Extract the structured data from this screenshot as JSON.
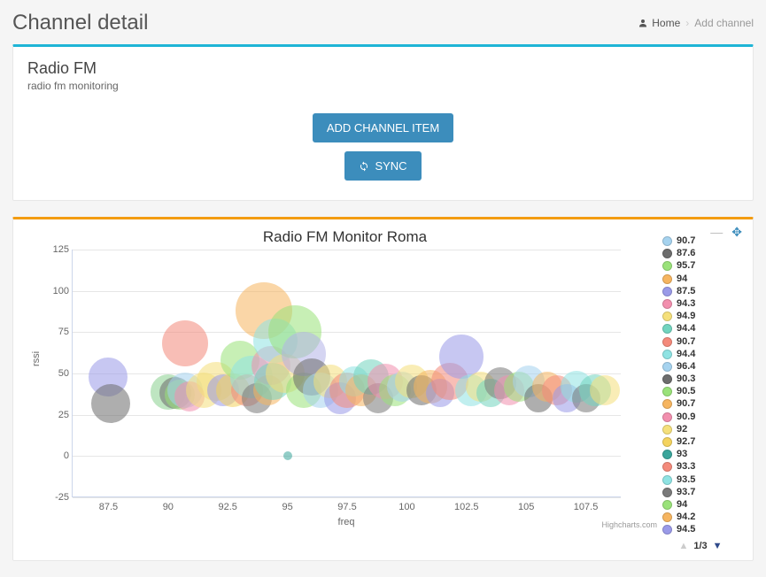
{
  "header": {
    "title": "Channel detail",
    "breadcrumb": {
      "home": "Home",
      "current": "Add channel"
    }
  },
  "channel": {
    "title": "Radio FM",
    "subtitle": "radio fm monitoring",
    "add_btn": "ADD CHANNEL ITEM",
    "sync_btn": "SYNC"
  },
  "chart": {
    "title": "Radio FM Monitor Roma",
    "xlabel": "freq",
    "ylabel": "rssi",
    "credit": "Highcharts.com",
    "pager": "1/3",
    "xlim": [
      86,
      109
    ],
    "ylim": [
      -25,
      125
    ],
    "yticks": [
      -25,
      0,
      25,
      50,
      75,
      100,
      125
    ],
    "xticks": [
      87.5,
      90,
      92.5,
      95,
      97.5,
      100,
      102.5,
      105,
      107.5
    ],
    "background_color": "#ffffff",
    "grid_color": "#e6e6e6",
    "axis_color": "#ccd6eb",
    "tick_font_size": 11,
    "title_font_size": 17,
    "bubble_opacity": 0.55,
    "legend": [
      {
        "label": "90.7",
        "color": "#a6d3ef"
      },
      {
        "label": "87.6",
        "color": "#6d6d6d"
      },
      {
        "label": "95.7",
        "color": "#9ae27a"
      },
      {
        "label": "94",
        "color": "#f6b560"
      },
      {
        "label": "87.5",
        "color": "#9a9ae8"
      },
      {
        "label": "94.3",
        "color": "#f28fae"
      },
      {
        "label": "94.9",
        "color": "#f5e07b"
      },
      {
        "label": "94.4",
        "color": "#72d4bf"
      },
      {
        "label": "90.7",
        "color": "#f48a7b"
      },
      {
        "label": "94.4",
        "color": "#8fe3e3"
      },
      {
        "label": "96.4",
        "color": "#a6d3ef"
      },
      {
        "label": "90.3",
        "color": "#6d6d6d"
      },
      {
        "label": "90.5",
        "color": "#9ae27a"
      },
      {
        "label": "90.7",
        "color": "#f6b560"
      },
      {
        "label": "90.9",
        "color": "#f28fae"
      },
      {
        "label": "92",
        "color": "#f5e07b"
      },
      {
        "label": "92.7",
        "color": "#f4d35e"
      },
      {
        "label": "93",
        "color": "#3aa59b"
      },
      {
        "label": "93.3",
        "color": "#f48a7b"
      },
      {
        "label": "93.5",
        "color": "#8fe3e3"
      },
      {
        "label": "93.7",
        "color": "#7a7a7a"
      },
      {
        "label": "94",
        "color": "#9ae27a"
      },
      {
        "label": "94.2",
        "color": "#f6b560"
      },
      {
        "label": "94.5",
        "color": "#9a9ae8"
      }
    ],
    "bubbles": [
      {
        "x": 87.5,
        "y": 48,
        "r": 22,
        "c": "#9a9ae8"
      },
      {
        "x": 87.6,
        "y": 32,
        "r": 22,
        "c": "#6d6d6d"
      },
      {
        "x": 90.0,
        "y": 39,
        "r": 20,
        "c": "#8ad18f"
      },
      {
        "x": 90.3,
        "y": 38,
        "r": 18,
        "c": "#6d6d6d"
      },
      {
        "x": 90.5,
        "y": 37,
        "r": 17,
        "c": "#9ae27a"
      },
      {
        "x": 90.7,
        "y": 68,
        "r": 26,
        "c": "#f48a7b"
      },
      {
        "x": 90.7,
        "y": 40,
        "r": 20,
        "c": "#a6d3ef"
      },
      {
        "x": 90.9,
        "y": 36,
        "r": 17,
        "c": "#f28fae"
      },
      {
        "x": 91.5,
        "y": 40,
        "r": 20,
        "c": "#f5e07b"
      },
      {
        "x": 92.0,
        "y": 45,
        "r": 22,
        "c": "#f5e07b"
      },
      {
        "x": 92.3,
        "y": 40,
        "r": 18,
        "c": "#9a9ae8"
      },
      {
        "x": 92.7,
        "y": 40,
        "r": 19,
        "c": "#f4d35e"
      },
      {
        "x": 93.0,
        "y": 58,
        "r": 22,
        "c": "#9ae27a"
      },
      {
        "x": 93.3,
        "y": 40,
        "r": 18,
        "c": "#f48a7b"
      },
      {
        "x": 93.5,
        "y": 48,
        "r": 24,
        "c": "#8fe3e3"
      },
      {
        "x": 93.7,
        "y": 35,
        "r": 17,
        "c": "#7a7a7a"
      },
      {
        "x": 94.0,
        "y": 88,
        "r": 32,
        "c": "#f6b560"
      },
      {
        "x": 94.2,
        "y": 40,
        "r": 17,
        "c": "#f6b560"
      },
      {
        "x": 94.3,
        "y": 55,
        "r": 22,
        "c": "#f28fae"
      },
      {
        "x": 94.4,
        "y": 45,
        "r": 21,
        "c": "#72d4bf"
      },
      {
        "x": 94.5,
        "y": 70,
        "r": 25,
        "c": "#8fe3e3"
      },
      {
        "x": 94.9,
        "y": 50,
        "r": 22,
        "c": "#f5e07b"
      },
      {
        "x": 95.0,
        "y": 0,
        "r": 5,
        "c": "#3aa59b"
      },
      {
        "x": 95.3,
        "y": 75,
        "r": 30,
        "c": "#9ae27a"
      },
      {
        "x": 95.7,
        "y": 40,
        "r": 20,
        "c": "#9ae27a"
      },
      {
        "x": 95.7,
        "y": 62,
        "r": 25,
        "c": "#b3b3e8"
      },
      {
        "x": 96.0,
        "y": 48,
        "r": 21,
        "c": "#6d6d6d"
      },
      {
        "x": 96.4,
        "y": 40,
        "r": 20,
        "c": "#a6d3ef"
      },
      {
        "x": 96.8,
        "y": 45,
        "r": 19,
        "c": "#f5e07b"
      },
      {
        "x": 97.2,
        "y": 35,
        "r": 18,
        "c": "#9a9ae8"
      },
      {
        "x": 97.5,
        "y": 40,
        "r": 20,
        "c": "#f48a7b"
      },
      {
        "x": 97.8,
        "y": 45,
        "r": 17,
        "c": "#8fe3e3"
      },
      {
        "x": 98.1,
        "y": 40,
        "r": 18,
        "c": "#f6b560"
      },
      {
        "x": 98.5,
        "y": 48,
        "r": 20,
        "c": "#72d4bf"
      },
      {
        "x": 98.8,
        "y": 35,
        "r": 17,
        "c": "#7a7a7a"
      },
      {
        "x": 99.1,
        "y": 45,
        "r": 20,
        "c": "#f28fae"
      },
      {
        "x": 99.5,
        "y": 40,
        "r": 18,
        "c": "#9ae27a"
      },
      {
        "x": 99.8,
        "y": 42,
        "r": 17,
        "c": "#a6d3ef"
      },
      {
        "x": 100.2,
        "y": 45,
        "r": 19,
        "c": "#f5e07b"
      },
      {
        "x": 100.6,
        "y": 40,
        "r": 17,
        "c": "#6d6d6d"
      },
      {
        "x": 101.0,
        "y": 42,
        "r": 19,
        "c": "#f6b560"
      },
      {
        "x": 101.4,
        "y": 38,
        "r": 16,
        "c": "#9a9ae8"
      },
      {
        "x": 101.8,
        "y": 45,
        "r": 21,
        "c": "#f48a7b"
      },
      {
        "x": 102.3,
        "y": 60,
        "r": 25,
        "c": "#9a9ae8"
      },
      {
        "x": 102.7,
        "y": 40,
        "r": 18,
        "c": "#8fe3e3"
      },
      {
        "x": 103.1,
        "y": 42,
        "r": 17,
        "c": "#f5e07b"
      },
      {
        "x": 103.5,
        "y": 38,
        "r": 16,
        "c": "#72d4bf"
      },
      {
        "x": 103.9,
        "y": 44,
        "r": 18,
        "c": "#7a7a7a"
      },
      {
        "x": 104.3,
        "y": 40,
        "r": 17,
        "c": "#f28fae"
      },
      {
        "x": 104.7,
        "y": 42,
        "r": 17,
        "c": "#9ae27a"
      },
      {
        "x": 105.1,
        "y": 45,
        "r": 18,
        "c": "#a6d3ef"
      },
      {
        "x": 105.5,
        "y": 35,
        "r": 16,
        "c": "#6d6d6d"
      },
      {
        "x": 105.9,
        "y": 42,
        "r": 17,
        "c": "#f6b560"
      },
      {
        "x": 106.3,
        "y": 40,
        "r": 17,
        "c": "#f48a7b"
      },
      {
        "x": 106.7,
        "y": 35,
        "r": 16,
        "c": "#9a9ae8"
      },
      {
        "x": 107.1,
        "y": 42,
        "r": 18,
        "c": "#8fe3e3"
      },
      {
        "x": 107.5,
        "y": 35,
        "r": 16,
        "c": "#7a7a7a"
      },
      {
        "x": 107.9,
        "y": 40,
        "r": 18,
        "c": "#72d4bf"
      },
      {
        "x": 108.3,
        "y": 40,
        "r": 17,
        "c": "#f5e07b"
      }
    ]
  }
}
